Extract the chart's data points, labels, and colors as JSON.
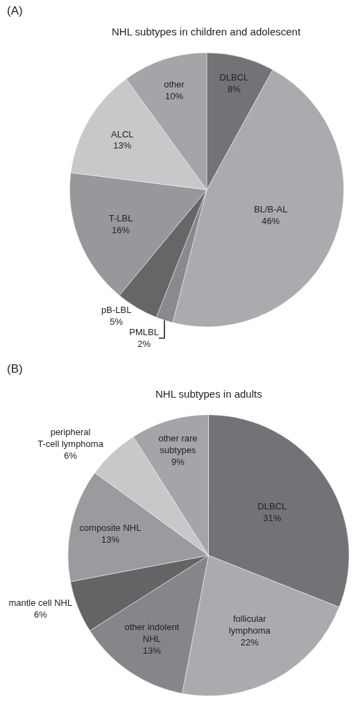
{
  "chart_data": [
    {
      "type": "pie",
      "title": "NHL subtypes in children and adolescent",
      "annotations": [
        "(A)"
      ],
      "categories": [
        "DLBCL",
        "BL/B-AL",
        "PMLBL",
        "pB-LBL",
        "T-LBL",
        "ALCL",
        "other"
      ],
      "values": [
        8,
        46,
        2,
        5,
        16,
        13,
        10
      ],
      "value_labels": [
        "8%",
        "46%",
        "2%",
        "5%",
        "16%",
        "13%",
        "10%"
      ],
      "colors": [
        "#737377",
        "#ababaf",
        "#8a8a8e",
        "#666669",
        "#98989c",
        "#c7c8ca",
        "#a5a5a9"
      ]
    },
    {
      "type": "pie",
      "title": "NHL subtypes in adults",
      "annotations": [
        "(B)"
      ],
      "categories": [
        "DLBCL",
        "follicular lymphoma",
        "other indolent NHL",
        "mantle cell NHL",
        "composite NHL",
        "peripheral T-cell lymphoma",
        "other rare subtypes"
      ],
      "values": [
        31,
        22,
        13,
        6,
        13,
        6,
        9
      ],
      "value_labels": [
        "31%",
        "22%",
        "13%",
        "6%",
        "13%",
        "6%",
        "9%"
      ],
      "colors": [
        "#737377",
        "#ababaf",
        "#86868a",
        "#646467",
        "#9b9b9f",
        "#c7c8ca",
        "#a5a5a9"
      ]
    }
  ]
}
